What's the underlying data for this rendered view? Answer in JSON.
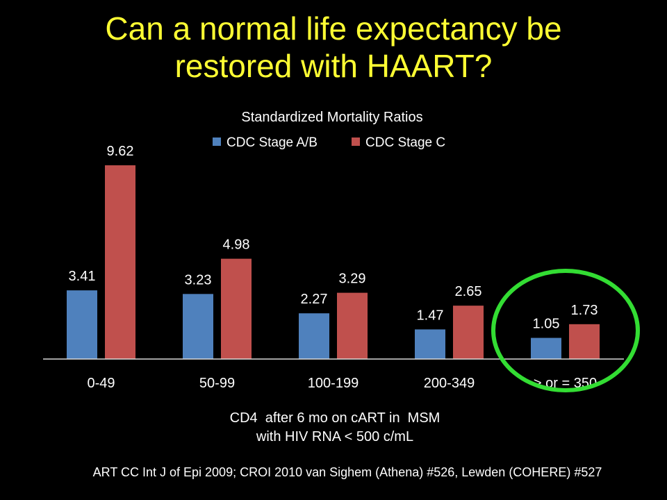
{
  "slide": {
    "title_line1": "Can a normal life expectancy be",
    "title_line2": "restored with HAART?",
    "citation": "ART CC Int J of Epi 2009; CROI 2010 van Sighem (Athena) #526, Lewden (COHERE) #527"
  },
  "colors": {
    "title": "#ffff33",
    "series_ab": "#4f81bd",
    "series_c": "#c0504d",
    "highlight_ring": "#33dd33",
    "background": "#000000"
  },
  "chart_data": {
    "type": "bar",
    "title": "Standardized Mortality Ratios",
    "xlabel_line1": "CD4  after 6 mo on cART in  MSM",
    "xlabel_line2": "with HIV RNA < 500 c/mL",
    "ylabel": "",
    "categories": [
      "0-49",
      "50-99",
      "100-199",
      "200-349",
      "> or = 350"
    ],
    "series": [
      {
        "name": "CDC Stage A/B",
        "color": "#4f81bd",
        "values": [
          3.41,
          3.23,
          2.27,
          1.47,
          1.05
        ]
      },
      {
        "name": "CDC Stage C",
        "color": "#c0504d",
        "values": [
          9.62,
          4.98,
          3.29,
          2.65,
          1.73
        ]
      }
    ],
    "ylim": [
      0,
      10
    ],
    "grid": false,
    "legend_position": "top",
    "highlighted_category": "> or = 350"
  }
}
